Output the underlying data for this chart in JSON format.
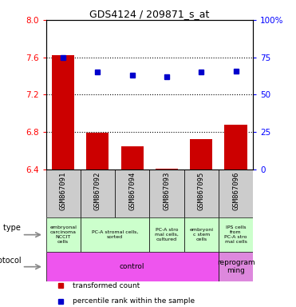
{
  "title": "GDS4124 / 209871_s_at",
  "samples": [
    "GSM867091",
    "GSM867092",
    "GSM867094",
    "GSM867093",
    "GSM867095",
    "GSM867096"
  ],
  "bar_values": [
    7.625,
    6.795,
    6.65,
    6.405,
    6.72,
    6.88
  ],
  "dot_values": [
    75,
    65,
    63,
    62,
    65,
    66
  ],
  "ylim_left": [
    6.4,
    8.0
  ],
  "ylim_right": [
    0,
    100
  ],
  "yticks_left": [
    6.4,
    6.8,
    7.2,
    7.6,
    8.0
  ],
  "yticks_right": [
    0,
    25,
    50,
    75,
    100
  ],
  "hlines": [
    6.8,
    7.2,
    7.6
  ],
  "bar_color": "#cc0000",
  "dot_color": "#0000cc",
  "bar_bottom": 6.4,
  "sample_bg": "#cccccc",
  "cell_types": [
    {
      "label": "embryonal\ncarcinoma\nNCCIT\ncells",
      "color": "#ccffcc",
      "span": [
        0,
        1
      ]
    },
    {
      "label": "PC-A stromal cells,\nsorted",
      "color": "#ccffcc",
      "span": [
        1,
        3
      ]
    },
    {
      "label": "PC-A stro\nmal cells,\ncultured",
      "color": "#ccffcc",
      "span": [
        3,
        4
      ]
    },
    {
      "label": "embryoni\nc stem\ncells",
      "color": "#ccffcc",
      "span": [
        4,
        5
      ]
    },
    {
      "label": "IPS cells\nfrom\nPC-A stro\nmal cells",
      "color": "#ccffcc",
      "span": [
        5,
        6
      ]
    }
  ],
  "protocols": [
    {
      "label": "control",
      "color": "#ee55ee",
      "span": [
        0,
        5
      ]
    },
    {
      "label": "reprogram\nming",
      "color": "#dd88dd",
      "span": [
        5,
        6
      ]
    }
  ],
  "cell_type_label": "cell type",
  "protocol_label": "protocol",
  "legend_items": [
    {
      "color": "#cc0000",
      "label": "transformed count"
    },
    {
      "color": "#0000cc",
      "label": "percentile rank within the sample"
    }
  ],
  "n_samples": 6
}
